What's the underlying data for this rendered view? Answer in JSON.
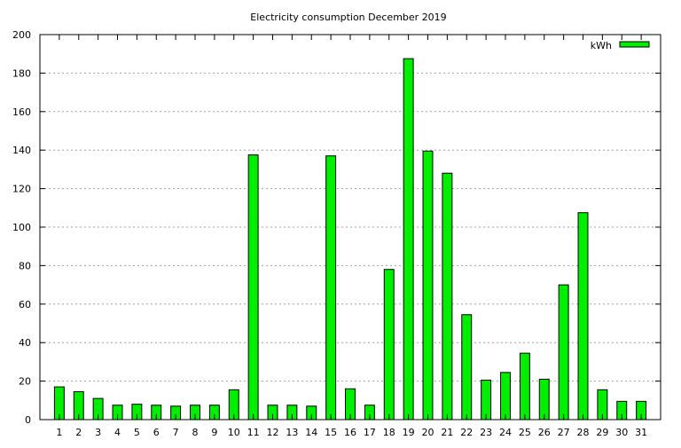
{
  "chart_data": {
    "type": "bar",
    "title": "Electricity consumption December 2019",
    "xlabel": "",
    "ylabel": "",
    "ylim": [
      0,
      200
    ],
    "yticks": [
      0,
      20,
      40,
      60,
      80,
      100,
      120,
      140,
      160,
      180,
      200
    ],
    "categories": [
      "1",
      "2",
      "3",
      "4",
      "5",
      "6",
      "7",
      "8",
      "9",
      "10",
      "11",
      "12",
      "13",
      "14",
      "15",
      "16",
      "17",
      "18",
      "19",
      "20",
      "21",
      "22",
      "23",
      "24",
      "25",
      "26",
      "27",
      "28",
      "29",
      "30",
      "31"
    ],
    "series": [
      {
        "name": "kWh",
        "color": "#00ee00",
        "values": [
          17,
          14.5,
          11,
          7.5,
          8,
          7.5,
          7,
          7.5,
          7.5,
          15.5,
          137.5,
          7.5,
          7.5,
          7,
          137,
          16,
          7.5,
          78,
          187.5,
          139.5,
          128,
          54.5,
          20.5,
          24.5,
          34.5,
          21,
          70,
          107.5,
          15.5,
          9.5,
          9.5
        ]
      }
    ],
    "grid": "horizontal-dotted",
    "legend_position": "top-right"
  }
}
